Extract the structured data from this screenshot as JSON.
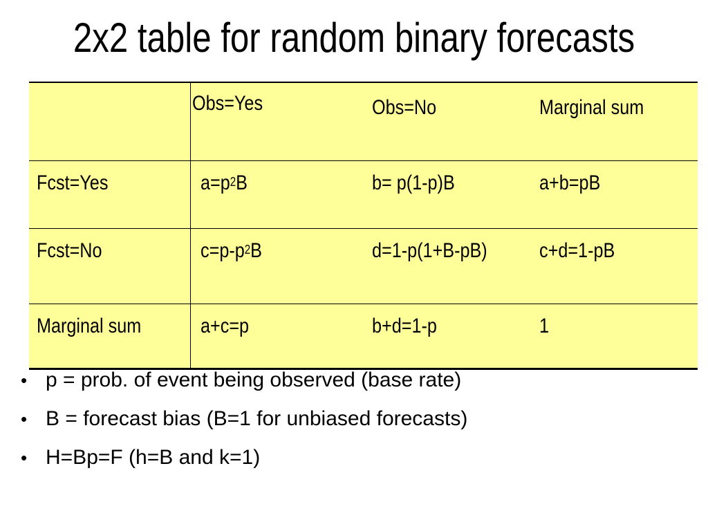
{
  "title": "2x2 table for random binary forecasts",
  "table": {
    "header": {
      "blank": "",
      "obs_yes": "Obs=Yes",
      "obs_no": "Obs=No",
      "marginal": "Marginal sum"
    },
    "rows": [
      {
        "label": "Fcst=Yes",
        "obs_yes": {
          "pre": "a=p",
          "sup": "2",
          "post": "B"
        },
        "obs_no": "b= p(1-p)B",
        "marginal": "a+b=pB"
      },
      {
        "label": "Fcst=No",
        "obs_yes": {
          "pre": "c=p-p",
          "sup": "2",
          "post": "B"
        },
        "obs_no": "d=1-p(1+B-pB)",
        "marginal": "c+d=1-pB"
      },
      {
        "label": "Marginal sum",
        "obs_yes": "a+c=p",
        "obs_no": "b+d=1-p",
        "marginal": "1"
      }
    ]
  },
  "bullets": [
    "p = prob. of event being observed (base rate)",
    "B = forecast bias (B=1 for unbiased forecasts)",
    "H=Bp=F (h=B and k=1)"
  ],
  "bullet_glyph": "•",
  "colors": {
    "table_fill": "#ffff99",
    "text": "#000000",
    "background": "#ffffff"
  }
}
